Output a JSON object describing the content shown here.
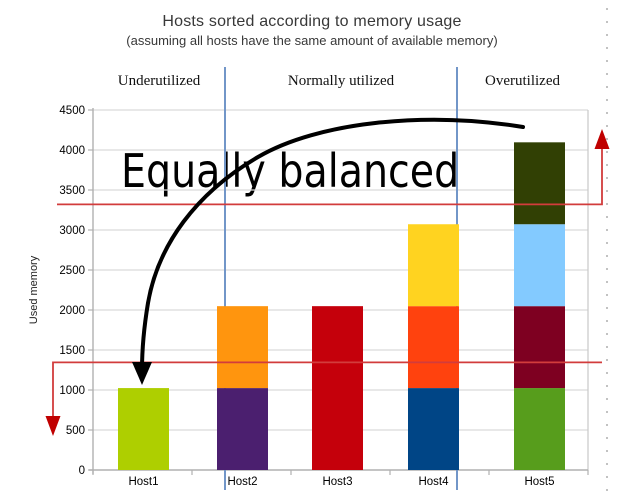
{
  "title": "Hosts sorted according to memory usage",
  "subtitle": "(assuming all hosts have the same amount of available memory)",
  "y_axis_title": "Used memory",
  "annotation": "Equally balanced",
  "zones": [
    {
      "label": "Underutilized"
    },
    {
      "label": "Normally utilized"
    },
    {
      "label": "Overutilized"
    }
  ],
  "chart_data": {
    "type": "bar",
    "stacked": true,
    "title": "Hosts sorted according to memory usage",
    "subtitle": "(assuming all hosts have the same amount of available memory)",
    "xlabel": "",
    "ylabel": "Used memory",
    "ylim": [
      0,
      4500
    ],
    "y_tick_step": 500,
    "grid": true,
    "legend": "none",
    "categories": [
      "Host1",
      "Host2",
      "Host3",
      "Host4",
      "Host5"
    ],
    "totals": [
      1024,
      2048,
      2048,
      3072,
      4096
    ],
    "bars": [
      {
        "host": "Host1",
        "segments": [
          {
            "value": 1024,
            "color": "#aecf00"
          }
        ]
      },
      {
        "host": "Host2",
        "segments": [
          {
            "value": 1024,
            "color": "#4b1f6f"
          },
          {
            "value": 1024,
            "color": "#ff950e"
          }
        ]
      },
      {
        "host": "Host3",
        "segments": [
          {
            "value": 2048,
            "color": "#c5000b"
          }
        ]
      },
      {
        "host": "Host4",
        "segments": [
          {
            "value": 1024,
            "color": "#004586"
          },
          {
            "value": 1024,
            "color": "#ff420e"
          },
          {
            "value": 1024,
            "color": "#ffd320"
          }
        ]
      },
      {
        "host": "Host5",
        "segments": [
          {
            "value": 1024,
            "color": "#579d1c"
          },
          {
            "value": 1024,
            "color": "#7e0021"
          },
          {
            "value": 1024,
            "color": "#83caff"
          },
          {
            "value": 1024,
            "color": "#314004"
          }
        ]
      }
    ],
    "threshold_lines": {
      "lower_value": 1345,
      "upper_value": 3320
    },
    "zone_labels": [
      "Underutilized",
      "Normally utilized",
      "Overutilized"
    ],
    "annotations": [
      "Equally balanced"
    ]
  },
  "colors": {
    "divider_blue": "#7296c8",
    "threshold_red": "#d23c3c",
    "arrowhead_red": "#c00000",
    "grid_gray": "#d9d9d9",
    "axis_gray": "#b0b0b0",
    "border_gray": "#c9c9c9",
    "tick_text": "#000000",
    "black_arrow": "#000000",
    "edge_dots": "#999999"
  }
}
